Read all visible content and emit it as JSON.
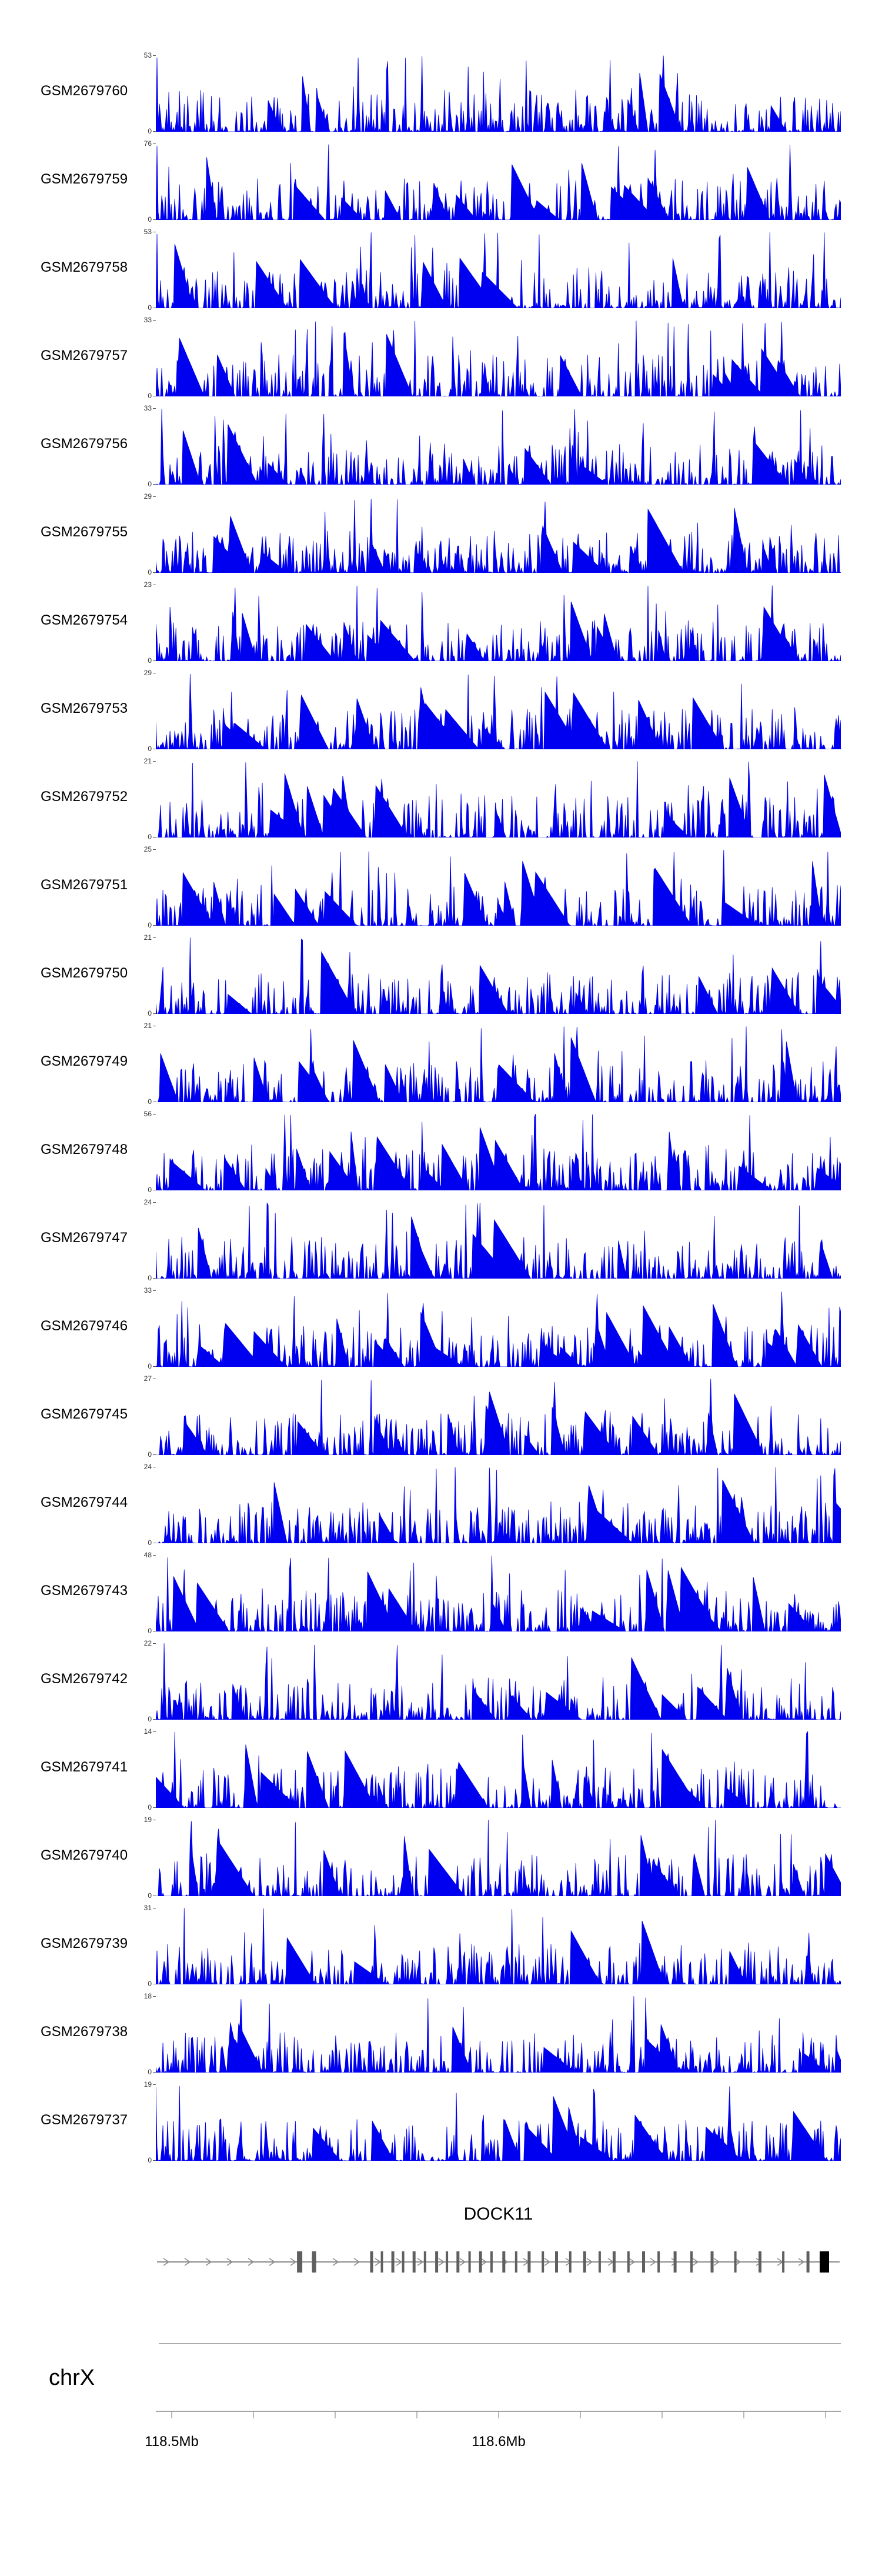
{
  "chart_data": {
    "type": "area",
    "description": "Genome browser read-coverage tracks (blue filled signal) over a region of chrX around 118.5-118.6 Mb, with DOCK11 gene model and genome coordinate axis below",
    "color": "#0000F0",
    "tracks": [
      {
        "name": "GSM2679760",
        "ylim": [
          0,
          53
        ],
        "seed": 11,
        "edge_spike": true
      },
      {
        "name": "GSM2679759",
        "ylim": [
          0,
          76
        ],
        "seed": 47,
        "edge_spike": true
      },
      {
        "name": "GSM2679758",
        "ylim": [
          0,
          53
        ],
        "seed": 83,
        "edge_spike": true
      },
      {
        "name": "GSM2679757",
        "ylim": [
          0,
          33
        ],
        "seed": 119,
        "edge_spike": false
      },
      {
        "name": "GSM2679756",
        "ylim": [
          0,
          33
        ],
        "seed": 155,
        "edge_spike": false
      },
      {
        "name": "GSM2679755",
        "ylim": [
          0,
          29
        ],
        "seed": 191,
        "edge_spike": false
      },
      {
        "name": "GSM2679754",
        "ylim": [
          0,
          23
        ],
        "seed": 227,
        "edge_spike": false
      },
      {
        "name": "GSM2679753",
        "ylim": [
          0,
          29
        ],
        "seed": 263,
        "edge_spike": false
      },
      {
        "name": "GSM2679752",
        "ylim": [
          0,
          21
        ],
        "seed": 299,
        "edge_spike": false
      },
      {
        "name": "GSM2679751",
        "ylim": [
          0,
          25
        ],
        "seed": 335,
        "edge_spike": false
      },
      {
        "name": "GSM2679750",
        "ylim": [
          0,
          21
        ],
        "seed": 371,
        "edge_spike": false
      },
      {
        "name": "GSM2679749",
        "ylim": [
          0,
          21
        ],
        "seed": 407,
        "edge_spike": false
      },
      {
        "name": "GSM2679748",
        "ylim": [
          0,
          56
        ],
        "seed": 443,
        "edge_spike": false
      },
      {
        "name": "GSM2679747",
        "ylim": [
          0,
          24
        ],
        "seed": 479,
        "edge_spike": false
      },
      {
        "name": "GSM2679746",
        "ylim": [
          0,
          33
        ],
        "seed": 515,
        "edge_spike": false
      },
      {
        "name": "GSM2679745",
        "ylim": [
          0,
          27
        ],
        "seed": 551,
        "edge_spike": false
      },
      {
        "name": "GSM2679744",
        "ylim": [
          0,
          24
        ],
        "seed": 587,
        "edge_spike": false
      },
      {
        "name": "GSM2679743",
        "ylim": [
          0,
          48
        ],
        "seed": 623,
        "edge_spike": false
      },
      {
        "name": "GSM2679742",
        "ylim": [
          0,
          22
        ],
        "seed": 659,
        "edge_spike": false
      },
      {
        "name": "GSM2679741",
        "ylim": [
          0,
          14
        ],
        "seed": 695,
        "edge_spike": false
      },
      {
        "name": "GSM2679740",
        "ylim": [
          0,
          19
        ],
        "seed": 731,
        "edge_spike": false
      },
      {
        "name": "GSM2679739",
        "ylim": [
          0,
          31
        ],
        "seed": 767,
        "edge_spike": false
      },
      {
        "name": "GSM2679738",
        "ylim": [
          0,
          18
        ],
        "seed": 803,
        "edge_spike": false
      },
      {
        "name": "GSM2679737",
        "ylim": [
          0,
          19
        ],
        "seed": 839,
        "edge_spike": false
      }
    ],
    "gene_annotation": {
      "name": "DOCK11",
      "arrow_direction": "right",
      "exons": [
        {
          "x": 0.21,
          "w": 9
        },
        {
          "x": 0.231,
          "w": 7
        },
        {
          "x": 0.315,
          "w": 5
        },
        {
          "x": 0.33,
          "w": 4
        },
        {
          "x": 0.346,
          "w": 5
        },
        {
          "x": 0.361,
          "w": 4
        },
        {
          "x": 0.377,
          "w": 5
        },
        {
          "x": 0.393,
          "w": 4
        },
        {
          "x": 0.41,
          "w": 5
        },
        {
          "x": 0.425,
          "w": 4
        },
        {
          "x": 0.441,
          "w": 5
        },
        {
          "x": 0.458,
          "w": 4
        },
        {
          "x": 0.474,
          "w": 5
        },
        {
          "x": 0.49,
          "w": 4
        },
        {
          "x": 0.508,
          "w": 5
        },
        {
          "x": 0.526,
          "w": 4
        },
        {
          "x": 0.545,
          "w": 5
        },
        {
          "x": 0.565,
          "w": 4
        },
        {
          "x": 0.585,
          "w": 5
        },
        {
          "x": 0.605,
          "w": 4
        },
        {
          "x": 0.626,
          "w": 5
        },
        {
          "x": 0.648,
          "w": 4
        },
        {
          "x": 0.669,
          "w": 5
        },
        {
          "x": 0.69,
          "w": 4
        },
        {
          "x": 0.712,
          "w": 5
        },
        {
          "x": 0.734,
          "w": 4
        },
        {
          "x": 0.758,
          "w": 5
        },
        {
          "x": 0.782,
          "w": 4
        },
        {
          "x": 0.812,
          "w": 5
        },
        {
          "x": 0.846,
          "w": 4
        },
        {
          "x": 0.882,
          "w": 5
        },
        {
          "x": 0.916,
          "w": 4
        },
        {
          "x": 0.952,
          "w": 5
        }
      ],
      "terminal_box": {
        "x": 0.976,
        "w": 16
      }
    },
    "x_axis": {
      "chromosome": "chrX",
      "tick_labels": [
        "118.5Mb",
        "118.6Mb"
      ],
      "labeled_ticks": [
        {
          "index": 0,
          "label": "118.5Mb"
        },
        {
          "index": 4,
          "label": "118.6Mb"
        }
      ],
      "tick_count": 9
    },
    "y_axis": {
      "baseline_label": "0"
    }
  }
}
